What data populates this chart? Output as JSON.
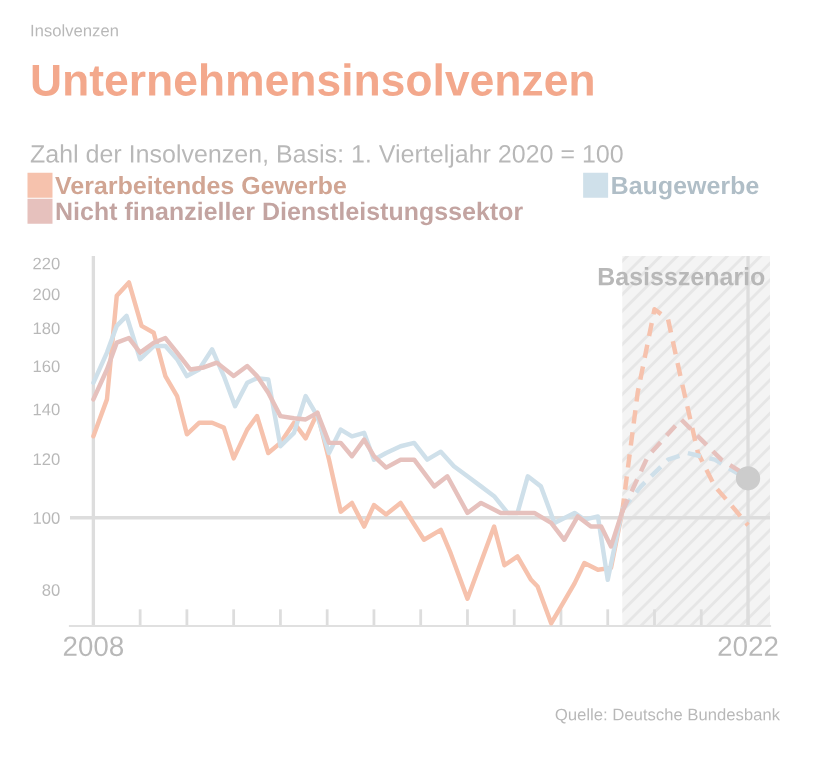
{
  "chart_data": {
    "type": "line",
    "title": "Unternehmensinsolvenzen",
    "subtitle": "Zahl der Insolvenzen, Basis: 1. Vierteljahr 2020 = 100",
    "annotations": [
      "Insolvenzen",
      "Quelle: Deutsche Bundesbank"
    ],
    "series": [
      {
        "name": "Verarbeitendes Gewerbe",
        "color": "#f6c2ad",
        "line_style": "solid",
        "x": [
          2008.0,
          2008.29,
          2008.5,
          2008.76,
          2009.03,
          2009.29,
          2009.54,
          2009.79,
          2010.0,
          2010.26,
          2010.54,
          2010.79,
          2011.0,
          2011.29,
          2011.5,
          2011.74,
          2012.0,
          2012.29,
          2012.54,
          2012.79,
          2013.04,
          2013.29,
          2013.53,
          2013.79,
          2014.0,
          2014.26,
          2014.57,
          2015.07,
          2015.43,
          2015.64,
          2016.0,
          2016.57,
          2016.79,
          2017.07,
          2017.36,
          2017.5,
          2017.79,
          2018.0,
          2018.29,
          2018.5,
          2018.79,
          2019.07,
          2019.31
        ],
        "values": [
          128.7,
          144.3,
          198.9,
          207.3,
          181.2,
          177.4,
          155.1,
          145.8,
          129.5,
          134.2,
          134.2,
          132.2,
          120.2,
          131.4,
          137.0,
          122.2,
          126.1,
          134.2,
          127.9,
          138.4,
          119.7,
          101.9,
          104.7,
          97.3,
          104.0,
          101.0,
          104.7,
          93.4,
          96.3,
          89.6,
          77.8,
          97.3,
          86.3,
          88.7,
          82.5,
          80.8,
          72.1,
          75.9,
          81.6,
          86.9,
          85.1,
          85.6,
          101.9
        ]
      },
      {
        "name": "Baugewerbe",
        "color": "#cfe0ea",
        "line_style": "solid",
        "x": [
          2008.0,
          2008.29,
          2008.5,
          2008.71,
          2009.0,
          2009.29,
          2009.54,
          2009.79,
          2010.0,
          2010.26,
          2010.54,
          2010.79,
          2011.03,
          2011.29,
          2011.5,
          2011.74,
          2012.0,
          2012.29,
          2012.54,
          2012.79,
          2013.04,
          2013.29,
          2013.53,
          2013.79,
          2014.0,
          2014.26,
          2014.57,
          2014.86,
          2015.14,
          2015.43,
          2015.71,
          2016.0,
          2016.29,
          2016.57,
          2016.86,
          2017.07,
          2017.29,
          2017.57,
          2017.86,
          2018.29,
          2018.5,
          2018.79,
          2019.0,
          2019.31
        ],
        "values": [
          151.9,
          166.8,
          181.2,
          186.9,
          163.4,
          170.2,
          170.2,
          163.4,
          155.1,
          158.3,
          168.5,
          155.1,
          141.3,
          151.9,
          154.1,
          153.5,
          124.8,
          130.1,
          145.8,
          137.0,
          122.2,
          131.4,
          128.7,
          130.1,
          119.7,
          122.2,
          124.8,
          126.1,
          119.7,
          122.7,
          117.3,
          113.7,
          110.2,
          106.9,
          101.5,
          101.5,
          113.7,
          110.2,
          98.4,
          101.5,
          99.4,
          100.4,
          82.5,
          102.5
        ]
      },
      {
        "name": "Nicht finanzieller Dienstleistungssektor",
        "color": "#e6c1bd",
        "line_style": "solid",
        "x": [
          2008.0,
          2008.29,
          2008.5,
          2008.76,
          2009.0,
          2009.29,
          2009.54,
          2009.79,
          2010.07,
          2010.36,
          2010.64,
          2011.0,
          2011.29,
          2011.5,
          2011.74,
          2012.0,
          2012.29,
          2012.54,
          2012.79,
          2013.04,
          2013.29,
          2013.53,
          2013.79,
          2014.0,
          2014.26,
          2014.57,
          2014.86,
          2015.29,
          2015.57,
          2016.0,
          2016.29,
          2016.71,
          2017.07,
          2017.43,
          2017.79,
          2018.07,
          2018.36,
          2018.64,
          2018.86,
          2019.07,
          2019.31
        ],
        "values": [
          144.3,
          158.3,
          172.0,
          174.5,
          166.8,
          172.0,
          174.5,
          166.8,
          158.3,
          159.3,
          161.7,
          155.1,
          160.0,
          155.1,
          147.3,
          137.0,
          136.1,
          135.6,
          138.4,
          126.1,
          126.1,
          121.0,
          127.4,
          121.0,
          116.8,
          119.7,
          119.7,
          110.2,
          113.7,
          101.5,
          104.7,
          101.5,
          101.5,
          101.5,
          98.4,
          93.4,
          100.4,
          97.3,
          97.3,
          91.5,
          101.9
        ]
      },
      {
        "color": "#f6c2ad",
        "line_style": "dashed",
        "x": [
          2019.31,
          2019.64,
          2020.0,
          2020.29,
          2020.57,
          2020.93,
          2021.29,
          2021.64,
          2022.0
        ],
        "values": [
          101.9,
          147.3,
          190.8,
          184.9,
          153.5,
          122.2,
          110.2,
          104.0,
          97.7
        ]
      },
      {
        "color": "#cfe0ea",
        "line_style": "dashed",
        "x": [
          2019.31,
          2019.71,
          2020.29,
          2020.71,
          2021.29,
          2022.0
        ],
        "values": [
          102.5,
          110.2,
          119.7,
          122.2,
          119.7,
          112.5
        ]
      },
      {
        "color": "#e6c1bd",
        "line_style": "dashed",
        "x": [
          2019.31,
          2019.86,
          2020.57,
          2021.0,
          2021.43,
          2022.0
        ],
        "values": [
          101.9,
          121.0,
          135.6,
          127.4,
          119.7,
          113.7
        ]
      },
      {
        "type": "scatter",
        "marker": "circle",
        "color": "#cccccc",
        "x": [
          2022.0
        ],
        "values": [
          113.0
        ]
      }
    ],
    "log": "y",
    "xlim": [
      2007.5,
      2022.47
    ],
    "ylim": [
      71.5,
      225
    ],
    "xticks": [
      {
        "value": 2008,
        "label": "2008"
      },
      {
        "value": 2009,
        "label": null
      },
      {
        "value": 2010,
        "label": null
      },
      {
        "value": 2011,
        "label": null
      },
      {
        "value": 2012,
        "label": null
      },
      {
        "value": 2013,
        "label": null
      },
      {
        "value": 2014,
        "label": null
      },
      {
        "value": 2015,
        "label": null
      },
      {
        "value": 2016,
        "label": null
      },
      {
        "value": 2017,
        "label": null
      },
      {
        "value": 2018,
        "label": null
      },
      {
        "value": 2019,
        "label": null
      },
      {
        "value": 2020,
        "label": null
      },
      {
        "value": 2021,
        "label": null
      },
      {
        "value": 2022,
        "label": "2022"
      }
    ],
    "yticks": [
      80,
      100,
      120,
      140,
      160,
      180,
      200,
      220
    ],
    "ref_lines": [
      {
        "axis": "y",
        "value": 100,
        "color": "#dddddd"
      },
      {
        "axis": "x",
        "value": 2008,
        "color": "#dddddd"
      },
      {
        "axis": "x",
        "value": 2022,
        "color": "#dddddd"
      }
    ],
    "bands": [
      {
        "axis": "x",
        "from": 2019.31,
        "to": 2022.47,
        "label": "Basisszenario",
        "color": "#f4f4f4"
      }
    ],
    "grid": false,
    "legend": "top"
  }
}
